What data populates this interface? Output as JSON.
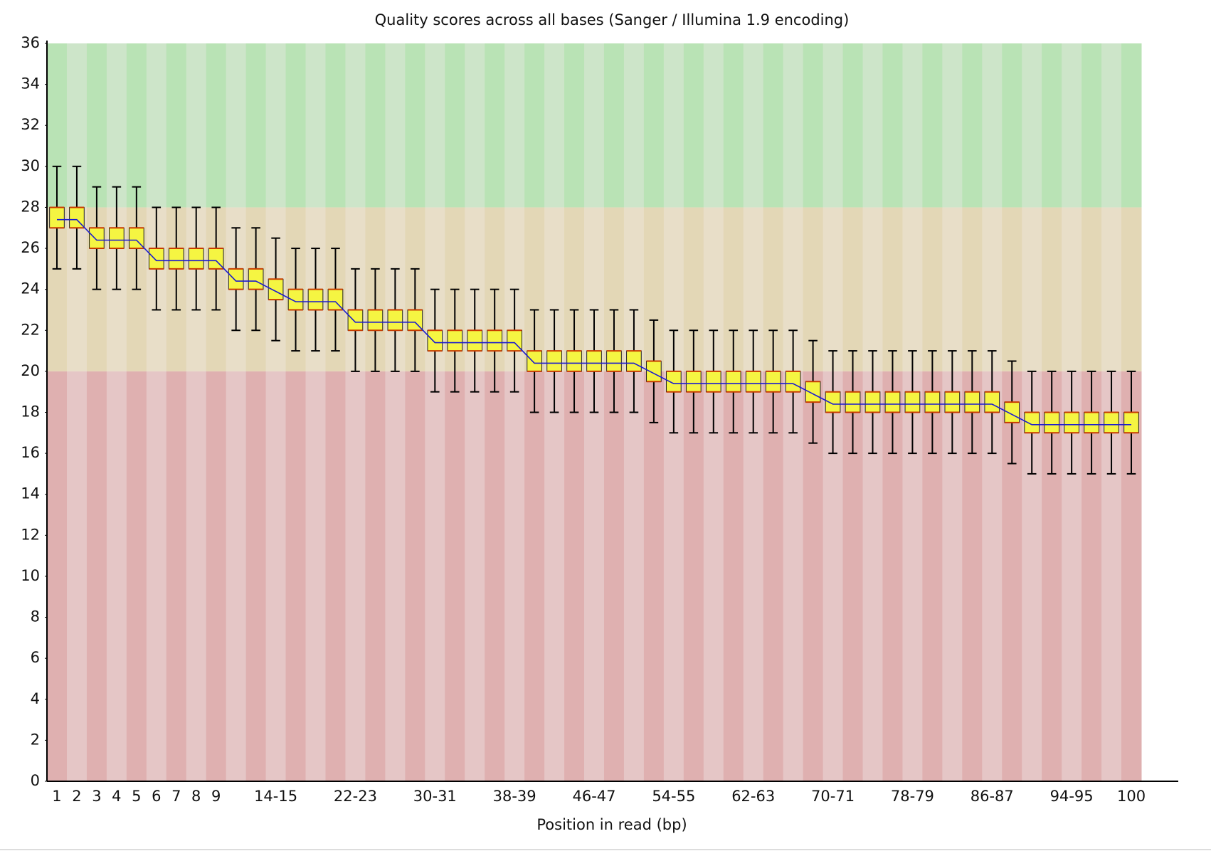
{
  "chart_data": {
    "type": "boxplot",
    "title": "Quality scores across all bases (Sanger / Illumina 1.9 encoding)",
    "x_label": "Position in read (bp)",
    "categories": [
      "1",
      "2",
      "3",
      "4",
      "5",
      "6",
      "7",
      "8",
      "9",
      null,
      null,
      "14-15",
      null,
      null,
      null,
      "22-23",
      null,
      null,
      null,
      "30-31",
      null,
      null,
      null,
      "38-39",
      null,
      null,
      null,
      "46-47",
      null,
      null,
      null,
      "54-55",
      null,
      null,
      null,
      "62-63",
      null,
      null,
      null,
      "70-71",
      null,
      null,
      null,
      "78-79",
      null,
      null,
      null,
      "86-87",
      null,
      null,
      null,
      "94-95",
      null,
      null,
      "100"
    ],
    "q1": [
      27,
      27,
      26,
      26,
      26,
      25,
      25,
      25,
      25,
      24,
      24,
      23.5,
      23,
      23,
      23,
      22,
      22,
      22,
      22,
      21,
      21,
      21,
      21,
      21,
      20,
      20,
      20,
      20,
      20,
      20,
      19.5,
      19,
      19,
      19,
      19,
      19,
      19,
      19,
      18.5,
      18,
      18,
      18,
      18,
      18,
      18,
      18,
      18,
      18,
      17.5,
      17,
      17,
      17,
      17,
      17,
      17
    ],
    "q3": [
      28,
      28,
      27,
      27,
      27,
      26,
      26,
      26,
      26,
      25,
      25,
      24.5,
      24,
      24,
      24,
      23,
      23,
      23,
      23,
      22,
      22,
      22,
      22,
      22,
      21,
      21,
      21,
      21,
      21,
      21,
      20.5,
      20,
      20,
      20,
      20,
      20,
      20,
      20,
      19.5,
      19,
      19,
      19,
      19,
      19,
      19,
      19,
      19,
      19,
      18.5,
      18,
      18,
      18,
      18,
      18,
      18
    ],
    "low": [
      25,
      25,
      24,
      24,
      24,
      23,
      23,
      23,
      23,
      22,
      22,
      21.5,
      21,
      21,
      21,
      20,
      20,
      20,
      20,
      19,
      19,
      19,
      19,
      19,
      18,
      18,
      18,
      18,
      18,
      18,
      17.5,
      17,
      17,
      17,
      17,
      17,
      17,
      17,
      16.5,
      16,
      16,
      16,
      16,
      16,
      16,
      16,
      16,
      16,
      15.5,
      15,
      15,
      15,
      15,
      15,
      15
    ],
    "high": [
      30,
      30,
      29,
      29,
      29,
      28,
      28,
      28,
      28,
      27,
      27,
      26.5,
      26,
      26,
      26,
      25,
      25,
      25,
      25,
      24,
      24,
      24,
      24,
      24,
      23,
      23,
      23,
      23,
      23,
      23,
      22.5,
      22,
      22,
      22,
      22,
      22,
      22,
      22,
      21.5,
      21,
      21,
      21,
      21,
      21,
      21,
      21,
      21,
      21,
      20.5,
      20,
      20,
      20,
      20,
      20,
      20
    ],
    "mean": [
      27.4,
      27.4,
      26.4,
      26.4,
      26.4,
      25.4,
      25.4,
      25.4,
      25.4,
      24.4,
      24.4,
      23.9,
      23.4,
      23.4,
      23.4,
      22.4,
      22.4,
      22.4,
      22.4,
      21.4,
      21.4,
      21.4,
      21.4,
      21.4,
      20.4,
      20.4,
      20.4,
      20.4,
      20.4,
      20.4,
      19.9,
      19.4,
      19.4,
      19.4,
      19.4,
      19.4,
      19.4,
      19.4,
      18.9,
      18.4,
      18.4,
      18.4,
      18.4,
      18.4,
      18.4,
      18.4,
      18.4,
      18.4,
      17.9,
      17.4,
      17.4,
      17.4,
      17.4,
      17.4,
      17.4
    ],
    "box_color": "#f5f542",
    "box_edge": "#c83c00",
    "mean_color": "#1a1ad0",
    "zones": [
      {
        "from": 0,
        "to": 20,
        "color": "#dfb0b0",
        "light": "#e5c6c6"
      },
      {
        "from": 20,
        "to": 28,
        "color": "#e3d7b6",
        "light": "#e8dec8"
      },
      {
        "from": 28,
        "to": 36,
        "color": "#b9e3b5",
        "light": "#cde5c9"
      }
    ],
    "ylim": [
      0,
      36
    ],
    "yticks": [
      0,
      2,
      4,
      6,
      8,
      10,
      12,
      14,
      16,
      18,
      20,
      22,
      24,
      26,
      28,
      30,
      32,
      34,
      36
    ]
  }
}
